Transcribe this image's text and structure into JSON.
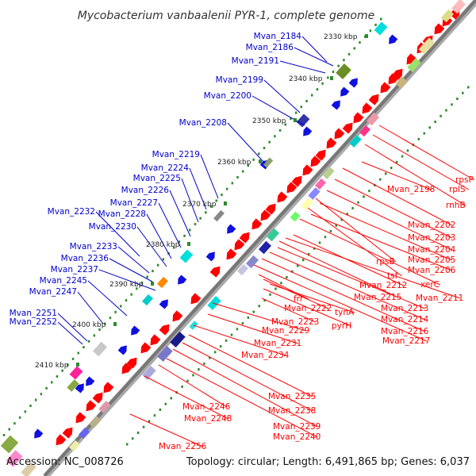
{
  "title": "Mycobacterium vanbaalenii PYR-1, complete genome",
  "accession": "Accession: NC_008726",
  "topology": "Topology: circular; Length: 6,491,865 bp; Genes: 6,037",
  "colors": {
    "backbone": "#777777",
    "tick": "#2e8b2e",
    "label_left": "#0000cc",
    "label_right": "#ff0000",
    "gene_red": "#ff0000",
    "gene_blue": "#1010e0"
  },
  "kbp_marks": [
    "2330 kbp",
    "2340 kbp",
    "2350 kbp",
    "2360 kbp",
    "2370 kbp",
    "2380 kbp",
    "2390 kbp",
    "2400 kbp",
    "2410 kbp"
  ],
  "labels_left": [
    "Mvan_2184",
    "Mvan_2186",
    "Mvan_2191",
    "Mvan_2199",
    "Mvan_2200",
    "Mvan_2208",
    "Mvan_2219",
    "Mvan_2224",
    "Mvan_2225",
    "Mvan_2226",
    "Mvan_2227",
    "Mvan_2228",
    "Mvan_2232",
    "Mvan_2230",
    "Mvan_2233",
    "Mvan_2236",
    "Mvan_2237",
    "Mvan_2245",
    "Mvan_2247",
    "Mvan_2251",
    "Mvan_2252"
  ],
  "labels_right": [
    "rpsP",
    "rplS",
    "rnhB",
    "Mvan_2198",
    "Mvan_2202",
    "Mvan_2203",
    "Mvan_2204",
    "Mvan_2205",
    "Mvan_2206",
    "rpsB",
    "tsf",
    "xerC",
    "Mvan_2212",
    "Mvan_2211",
    "Mvan_2215",
    "Mvan_2213",
    "Mvan_2214",
    "Mvan_2216",
    "Mvan_2217",
    "frr",
    "Mvan_2222",
    "tynA",
    "pyrH",
    "Mvan_2223",
    "Mvan_2229",
    "Mvan_2231",
    "Mvan_2234",
    "Mvan_2235",
    "Mvan_2238",
    "Mvan_2239",
    "Mvan_2240",
    "Mvan_2246",
    "Mvan_2248",
    "Mvan_2256"
  ]
}
